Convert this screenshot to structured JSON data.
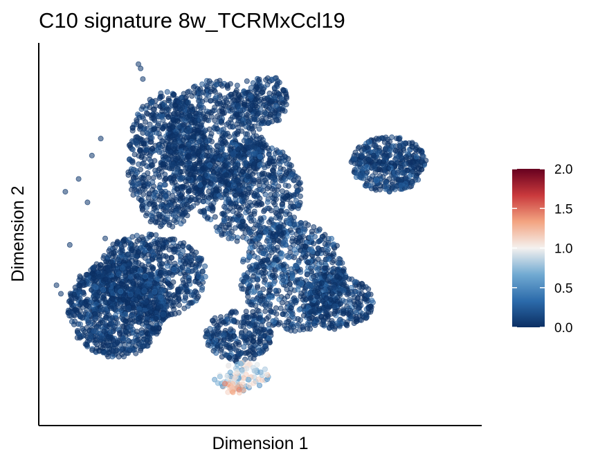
{
  "chart_data": {
    "type": "scatter",
    "title": "C10 signature 8w_TCRMxCcl19",
    "xlabel": "Dimension 1",
    "ylabel": "Dimension 2",
    "grid": false,
    "axis_ticks": false,
    "legend_placement": "right",
    "color_scale": {
      "name": "RdBu (reversed)",
      "min": 0.0,
      "max": 2.0,
      "ticks": [
        "0.0",
        "0.5",
        "1.0",
        "1.5",
        "2.0"
      ],
      "stops": [
        "#0b2f63",
        "#2c6bab",
        "#71aad2",
        "#f4f1ef",
        "#f3a481",
        "#c9393c",
        "#67001f"
      ]
    },
    "point_style": {
      "opacity": 0.55,
      "low_value_color": "#0b2f63"
    },
    "clusters": [
      {
        "region": "left lobe",
        "x_range": [
          -9,
          -2
        ],
        "y_range": [
          -7,
          -2
        ],
        "value_range": [
          0.0,
          0.3
        ]
      },
      {
        "region": "upper central mass",
        "x_range": [
          -6,
          1.5
        ],
        "y_range": [
          -2,
          6.5
        ],
        "value_range": [
          0.0,
          0.3
        ]
      },
      {
        "region": "right island",
        "x_range": [
          4,
          7.5
        ],
        "y_range": [
          1,
          4
        ],
        "value_range": [
          0.0,
          0.4
        ]
      },
      {
        "region": "lower right lobe",
        "x_range": [
          -1,
          5
        ],
        "y_range": [
          -7,
          -1
        ],
        "value_range": [
          0.0,
          0.5
        ]
      },
      {
        "region": "bottom hotspot",
        "x_range": [
          -2,
          1
        ],
        "y_range": [
          -9,
          -7
        ],
        "value_range": [
          0.5,
          1.6
        ]
      }
    ]
  }
}
